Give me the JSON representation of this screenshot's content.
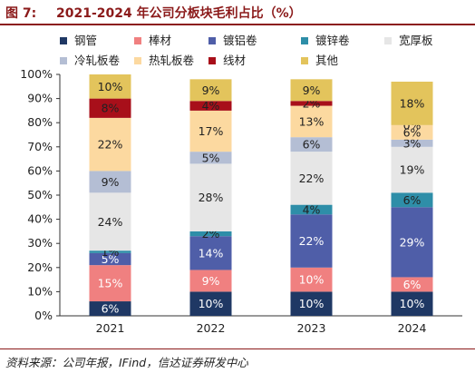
{
  "title_prefix": "图 7:",
  "title": "2021-2024 年公司分板块毛利占比（%）",
  "source": "资料来源：公司年报，IFind，信达证券研发中心",
  "chart_data": {
    "type": "bar",
    "stacked": true,
    "categories": [
      "2021",
      "2022",
      "2023",
      "2024"
    ],
    "ylim": [
      0,
      100
    ],
    "yticks": [
      "0%",
      "10%",
      "20%",
      "30%",
      "40%",
      "50%",
      "60%",
      "70%",
      "80%",
      "90%",
      "100%"
    ],
    "legend_position": "top",
    "series": [
      {
        "name": "钢管",
        "color": "#1f3864",
        "values": [
          6,
          10,
          10,
          10
        ]
      },
      {
        "name": "棒材",
        "color": "#f08080",
        "values": [
          15,
          9,
          10,
          6
        ]
      },
      {
        "name": "镀铝卷",
        "color": "#4f5ea8",
        "values": [
          5,
          14,
          22,
          29
        ]
      },
      {
        "name": "镀锌卷",
        "color": "#2e8ea8",
        "values": [
          1,
          2,
          4,
          6
        ]
      },
      {
        "name": "宽厚板",
        "color": "#e6e6e6",
        "values": [
          24,
          28,
          22,
          19
        ]
      },
      {
        "name": "冷轧板卷",
        "color": "#b4bed4",
        "values": [
          9,
          5,
          6,
          3
        ]
      },
      {
        "name": "热轧板卷",
        "color": "#fcd9a0",
        "values": [
          22,
          17,
          13,
          6
        ]
      },
      {
        "name": "线材",
        "color": "#a80f1a",
        "values": [
          8,
          4,
          2,
          0
        ]
      },
      {
        "name": "其他",
        "color": "#e3c45c",
        "values": [
          10,
          9,
          9,
          18
        ]
      }
    ]
  }
}
